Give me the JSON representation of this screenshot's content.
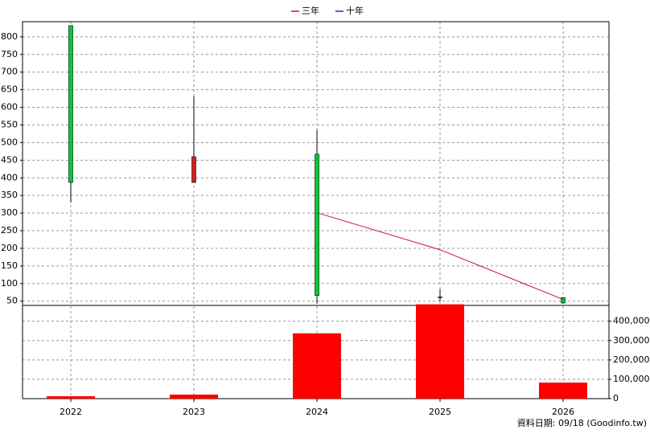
{
  "chart_data": {
    "type": "candlestick",
    "categories": [
      "2022",
      "2023",
      "2024",
      "2025",
      "2026"
    ],
    "open": [
      832,
      387,
      467,
      60,
      60
    ],
    "high": [
      832,
      631,
      536,
      84,
      60
    ],
    "low": [
      330,
      387,
      43,
      50,
      43
    ],
    "close": [
      387,
      460,
      66,
      62,
      45
    ],
    "up_color": "#cc2222",
    "down_color": "#00cc33",
    "ylim": [
      38,
      843
    ],
    "yticks": [
      50,
      100,
      150,
      200,
      250,
      300,
      350,
      400,
      450,
      500,
      550,
      600,
      650,
      700,
      750,
      800
    ],
    "grid": true,
    "series": [
      {
        "name": "三年",
        "color": "#cc0066",
        "values": [
          null,
          null,
          301,
          196,
          55
        ]
      },
      {
        "name": "十年",
        "color": "#6600cc",
        "values": [
          null,
          null,
          null,
          null,
          null
        ]
      }
    ],
    "volume": {
      "type": "bar",
      "color": "#ff0000",
      "values": [
        12500,
        21000,
        337500,
        487500,
        83000
      ],
      "ylim": [
        0,
        490000
      ],
      "yticks": [
        0,
        {
          "value": 100000,
          "label": "100,000"
        },
        {
          "value": 200000,
          "label": "200,000"
        },
        {
          "value": 300000,
          "label": "300,000"
        },
        {
          "value": 400000,
          "label": "400,000"
        }
      ]
    },
    "source": "資料日期: 09/18 (Goodinfo.tw)"
  }
}
